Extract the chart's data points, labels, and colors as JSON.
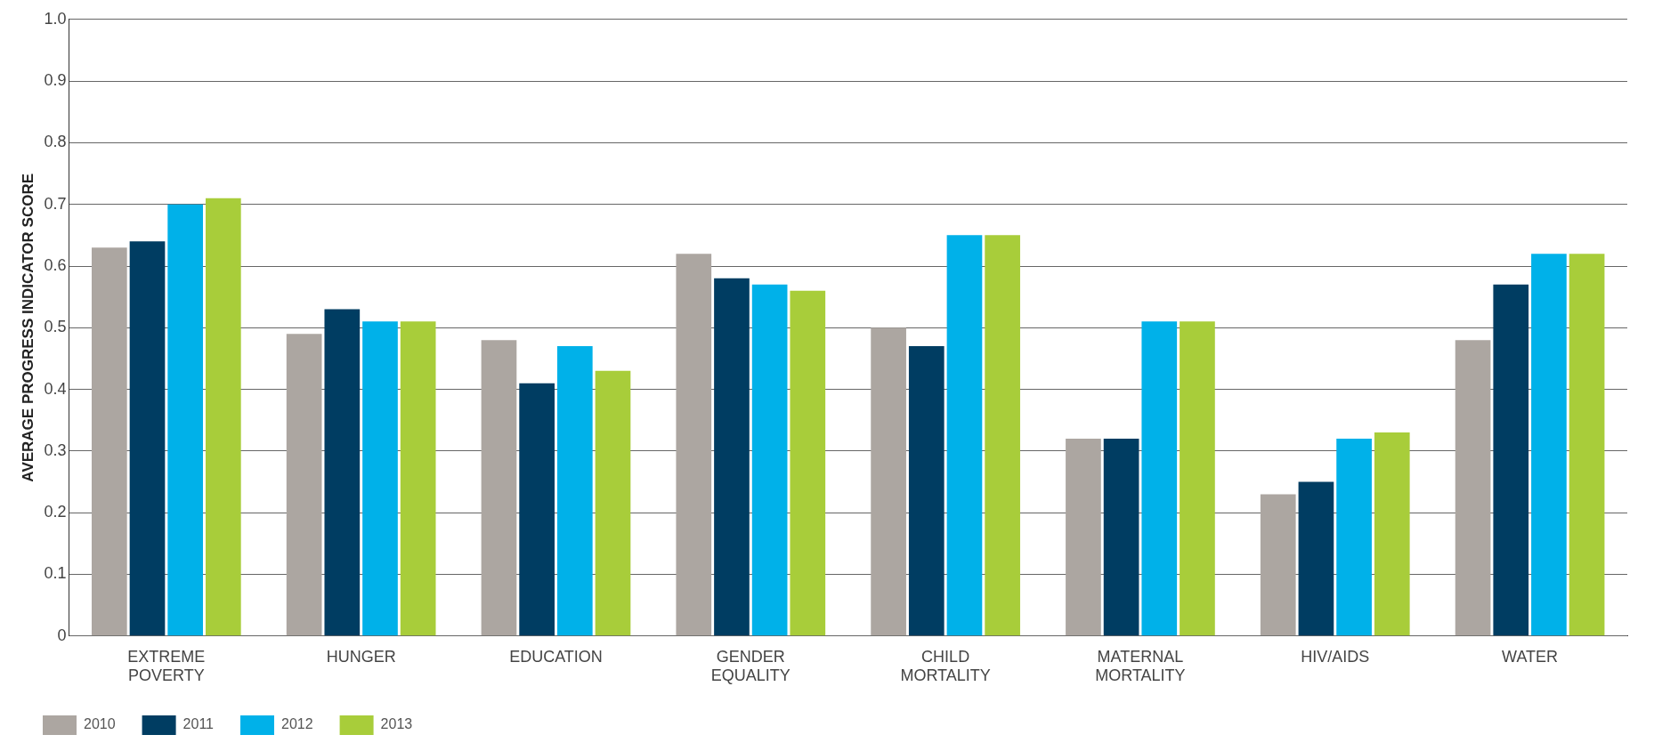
{
  "chart_data": {
    "type": "bar",
    "ylabel": "AVERAGE PROGRESS INDICATOR SCORE",
    "categories": [
      "EXTREME POVERTY",
      "HUNGER",
      "EDUCATION",
      "GENDER EQUALITY",
      "CHILD MORTALITY",
      "MATERNAL MORTALITY",
      "HIV/AIDS",
      "WATER"
    ],
    "series": [
      {
        "name": "2010",
        "color": "#aca6a1",
        "values": [
          0.63,
          0.49,
          0.48,
          0.62,
          0.5,
          0.32,
          0.23,
          0.48
        ]
      },
      {
        "name": "2011",
        "color": "#003d62",
        "values": [
          0.64,
          0.53,
          0.41,
          0.58,
          0.47,
          0.32,
          0.25,
          0.57
        ]
      },
      {
        "name": "2012",
        "color": "#00b1e9",
        "values": [
          0.7,
          0.51,
          0.47,
          0.57,
          0.65,
          0.51,
          0.32,
          0.62
        ]
      },
      {
        "name": "2013",
        "color": "#a8cd3a",
        "values": [
          0.71,
          0.51,
          0.43,
          0.56,
          0.65,
          0.51,
          0.33,
          0.62
        ]
      }
    ],
    "ylim": [
      0,
      1
    ],
    "yticks": [
      0,
      0.1,
      0.2,
      0.3,
      0.4,
      0.5,
      0.6,
      0.7,
      0.8,
      0.9,
      {
        "value": 1,
        "label": "1.0"
      }
    ],
    "grid": "y",
    "legend": "bottom left"
  }
}
